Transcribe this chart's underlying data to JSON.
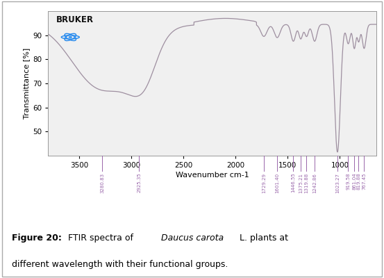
{
  "xlabel": "Wavenumber cm-1",
  "ylabel": "Transmittance [%]",
  "xlim": [
    3800,
    650
  ],
  "ylim": [
    40,
    100
  ],
  "yticks": [
    50,
    60,
    70,
    80,
    90
  ],
  "xticks": [
    3500,
    3000,
    2500,
    2000,
    1500,
    1000
  ],
  "line_color": "#9e8fa0",
  "bg_color": "#f0f0f0",
  "peak_labels": [
    "3280.83",
    "2925.35",
    "1729.29",
    "1601.40",
    "1446.55",
    "1375.21",
    "1319.88",
    "1242.86",
    "1023.27",
    "919.58",
    "861.04",
    "819.88",
    "767.45"
  ],
  "peak_positions": [
    3280.83,
    2925.35,
    1729.29,
    1601.4,
    1446.55,
    1375.21,
    1319.88,
    1242.86,
    1023.27,
    919.58,
    861.04,
    819.88,
    767.45
  ],
  "label_color": "#9966aa",
  "bruker_text": "BRUKER",
  "bruker_color": "#111111",
  "atom_color": "#2288ee",
  "border_color": "#999999",
  "caption_bold": "Figure 20:",
  "caption_normal": " FTIR spectra of ",
  "caption_italic": "Daucus carota",
  "caption_end": " L. plants at",
  "caption_line2": "different wavelength with their functional groups.",
  "caption_fontsize": 9.0
}
